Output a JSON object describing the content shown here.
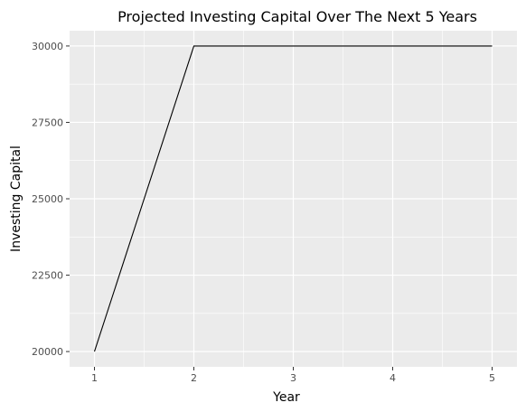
{
  "chart_data": {
    "type": "line",
    "title": "Projected Investing Capital Over The Next 5 Years",
    "xlabel": "Year",
    "ylabel": "Investing Capital",
    "x": [
      1,
      2,
      3,
      4,
      5
    ],
    "series": [
      {
        "values": [
          20000,
          30000,
          30000,
          30000,
          30000
        ]
      }
    ],
    "xticks": [
      "1",
      "2",
      "3",
      "4",
      "5"
    ],
    "yticks": [
      "20000",
      "22500",
      "25000",
      "27500",
      "30000"
    ],
    "xlim": [
      0.75,
      5.25
    ],
    "ylim": [
      19500,
      30500
    ],
    "grid": true,
    "legend": "none",
    "colors": {
      "panel": "#EBEBEB",
      "grid": "#FFFFFF",
      "line": "#000000",
      "tick_text": "#4D4D4D"
    }
  }
}
